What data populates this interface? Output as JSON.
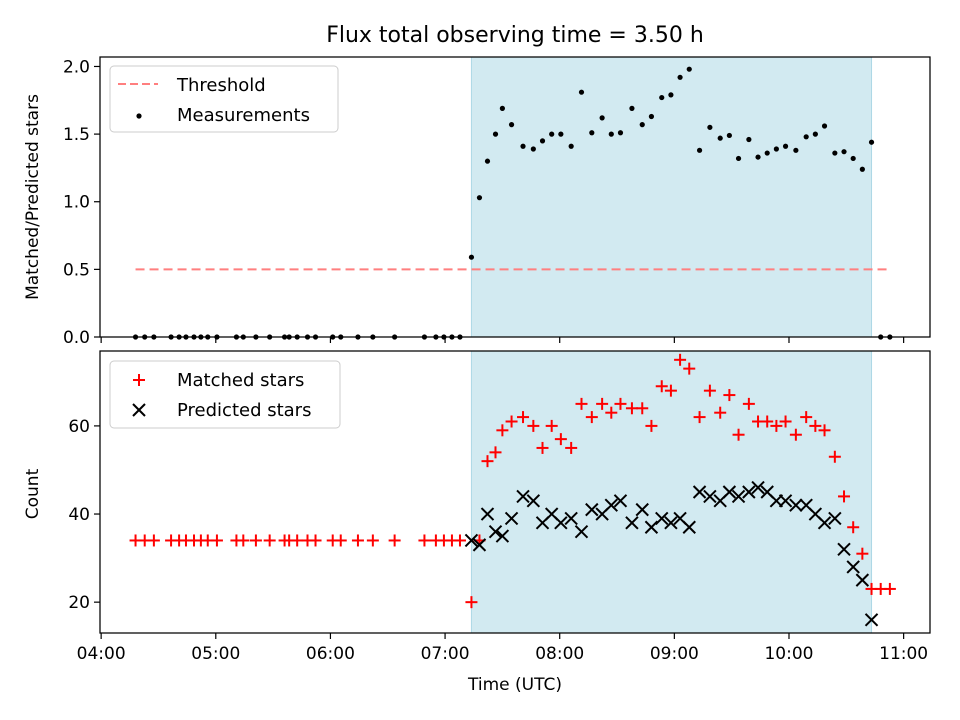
{
  "chart_data": {
    "title": "Flux total observing time = 3.50 h",
    "xlabel": "Time (UTC)",
    "x_tick_labels": [
      "04:00",
      "05:00",
      "06:00",
      "07:00",
      "08:00",
      "09:00",
      "10:00",
      "11:00"
    ],
    "x_ticks": [
      4.0,
      5.0,
      6.0,
      7.0,
      8.0,
      9.0,
      10.0,
      11.0
    ],
    "xlim": [
      3.99,
      11.23
    ],
    "shaded_span": [
      7.23,
      10.72
    ],
    "span_color": "#add8e6",
    "panels": [
      {
        "type": "scatter",
        "ylabel": "Matched/Predicted stars",
        "ylim": [
          0,
          2.07
        ],
        "y_ticks": [
          0.0,
          0.5,
          1.0,
          1.5,
          2.0
        ],
        "y_tick_labels": [
          "0.0",
          "0.5",
          "1.0",
          "1.5",
          "2.0"
        ],
        "legend": [
          "Threshold",
          "Measurements"
        ],
        "legend_placement": "upper-left",
        "threshold": {
          "name": "Threshold",
          "y": 0.5,
          "x_range": [
            4.3,
            10.88
          ],
          "color": "#ff7f7f"
        },
        "series": [
          {
            "name": "Measurements",
            "color": "#000000",
            "x": [
              4.3,
              4.38,
              4.46,
              4.61,
              4.68,
              4.74,
              4.81,
              4.87,
              4.93,
              5.01,
              5.18,
              5.24,
              5.35,
              5.47,
              5.6,
              5.64,
              5.71,
              5.8,
              5.87,
              6.02,
              6.09,
              6.24,
              6.37,
              6.56,
              6.82,
              6.92,
              6.99,
              7.06,
              7.13,
              7.23,
              7.3,
              7.37,
              7.44,
              7.5,
              7.58,
              7.68,
              7.77,
              7.85,
              7.93,
              8.01,
              8.1,
              8.19,
              8.28,
              8.37,
              8.45,
              8.53,
              8.63,
              8.72,
              8.8,
              8.89,
              8.97,
              9.05,
              9.13,
              9.22,
              9.31,
              9.4,
              9.48,
              9.56,
              9.65,
              9.73,
              9.81,
              9.89,
              9.97,
              10.06,
              10.15,
              10.23,
              10.31,
              10.4,
              10.48,
              10.56,
              10.64,
              10.72,
              10.8,
              10.88
            ],
            "y": [
              0,
              0,
              0,
              0,
              0,
              0,
              0,
              0,
              0,
              0,
              0,
              0,
              0,
              0,
              0,
              0,
              0,
              0,
              0,
              0,
              0,
              0,
              0,
              0,
              0,
              0,
              0,
              0,
              0,
              0.59,
              1.03,
              1.3,
              1.5,
              1.69,
              1.57,
              1.41,
              1.39,
              1.45,
              1.5,
              1.5,
              1.41,
              1.81,
              1.51,
              1.62,
              1.5,
              1.51,
              1.69,
              1.57,
              1.63,
              1.77,
              1.79,
              1.92,
              1.98,
              1.38,
              1.55,
              1.47,
              1.49,
              1.32,
              1.46,
              1.33,
              1.36,
              1.39,
              1.41,
              1.38,
              1.48,
              1.5,
              1.56,
              1.36,
              1.37,
              1.32,
              1.24,
              1.44,
              0,
              0
            ]
          }
        ]
      },
      {
        "type": "scatter",
        "ylabel": "Count",
        "ylim": [
          13,
          77
        ],
        "y_ticks": [
          20,
          40,
          60
        ],
        "y_tick_labels": [
          "20",
          "40",
          "60"
        ],
        "legend": [
          "Matched stars",
          "Predicted stars"
        ],
        "legend_placement": "upper-left",
        "series": [
          {
            "name": "Matched stars",
            "marker": "plus",
            "color": "#ff0000",
            "x": [
              4.3,
              4.38,
              4.46,
              4.61,
              4.68,
              4.74,
              4.81,
              4.87,
              4.93,
              5.01,
              5.18,
              5.24,
              5.35,
              5.47,
              5.6,
              5.64,
              5.71,
              5.8,
              5.87,
              6.02,
              6.09,
              6.24,
              6.37,
              6.56,
              6.82,
              6.92,
              6.99,
              7.06,
              7.13,
              7.23,
              7.3,
              7.37,
              7.44,
              7.5,
              7.58,
              7.68,
              7.77,
              7.85,
              7.93,
              8.01,
              8.1,
              8.19,
              8.28,
              8.37,
              8.45,
              8.53,
              8.63,
              8.72,
              8.8,
              8.89,
              8.97,
              9.05,
              9.13,
              9.22,
              9.31,
              9.4,
              9.48,
              9.56,
              9.65,
              9.73,
              9.81,
              9.89,
              9.97,
              10.06,
              10.15,
              10.23,
              10.31,
              10.4,
              10.48,
              10.56,
              10.64,
              10.72,
              10.8,
              10.88
            ],
            "y": [
              34,
              34,
              34,
              34,
              34,
              34,
              34,
              34,
              34,
              34,
              34,
              34,
              34,
              34,
              34,
              34,
              34,
              34,
              34,
              34,
              34,
              34,
              34,
              34,
              34,
              34,
              34,
              34,
              34,
              20,
              34,
              52,
              54,
              59,
              61,
              62,
              60,
              55,
              60,
              57,
              55,
              65,
              62,
              65,
              63,
              65,
              64,
              64,
              60,
              69,
              68,
              75,
              73,
              62,
              68,
              63,
              67,
              58,
              65,
              61,
              61,
              60,
              61,
              58,
              62,
              60,
              59,
              53,
              44,
              37,
              31,
              23,
              23,
              23
            ]
          },
          {
            "name": "Predicted stars",
            "marker": "x",
            "color": "#000000",
            "x": [
              7.23,
              7.3,
              7.37,
              7.44,
              7.5,
              7.58,
              7.68,
              7.77,
              7.85,
              7.93,
              8.01,
              8.1,
              8.19,
              8.28,
              8.37,
              8.45,
              8.53,
              8.63,
              8.72,
              8.8,
              8.89,
              8.97,
              9.05,
              9.13,
              9.22,
              9.31,
              9.4,
              9.48,
              9.56,
              9.65,
              9.73,
              9.81,
              9.89,
              9.97,
              10.06,
              10.15,
              10.23,
              10.31,
              10.4,
              10.48,
              10.56,
              10.64,
              10.72
            ],
            "y": [
              34,
              33,
              40,
              36,
              35,
              39,
              44,
              43,
              38,
              40,
              38,
              39,
              36,
              41,
              40,
              42,
              43,
              38,
              41,
              37,
              39,
              38,
              39,
              37,
              45,
              44,
              43,
              45,
              44,
              45,
              46,
              45,
              43,
              43,
              42,
              42,
              40,
              38,
              39,
              32,
              28,
              25,
              16
            ]
          }
        ]
      }
    ]
  }
}
